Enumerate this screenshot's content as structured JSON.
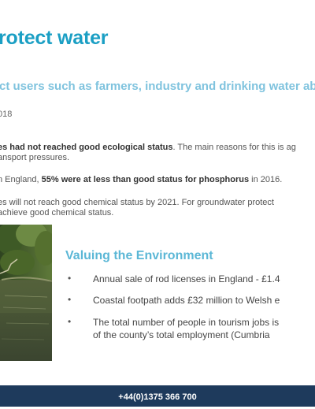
{
  "title": "rotect water",
  "subtitle": "ct users such as farmers, industry and drinking water ab",
  "date": "018",
  "paragraphs": {
    "p1_line1_bold": "es had not reached good ecological status",
    "p1_line1_rest": ". The main reasons for this is ag",
    "p1_line2": "ansport pressures.",
    "p2_pre": "n England, ",
    "p2_bold": "55% were at less than good status for phosphorus",
    "p2_post": " in 2016.",
    "p3_line1": "es will not reach good chemical status by 2021. For groundwater protect",
    "p3_line2": "achieve good chemical status."
  },
  "environment": {
    "heading": "Valuing the Environment",
    "bullet_symbol": "•",
    "items": [
      {
        "line1": "Annual sale of rod licenses in England - £1.4"
      },
      {
        "line1": "Coastal footpath adds £32 million to Welsh e"
      },
      {
        "line1": "The total number of people in tourism jobs is",
        "line2": "of the county’s total employment (Cumbria"
      }
    ]
  },
  "footer": {
    "phone": "+44(0)1375 366 700",
    "color": "#1e3a5c"
  },
  "colors": {
    "title": "#1b9fc4",
    "subtitle": "#7fc3de",
    "heading": "#5bb7d6"
  }
}
